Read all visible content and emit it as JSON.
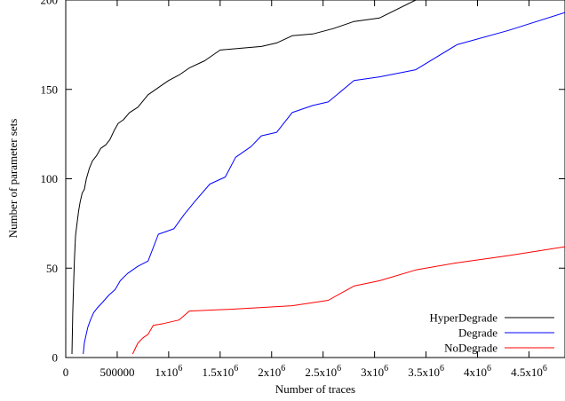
{
  "chart_data": {
    "type": "line",
    "title": "",
    "xlabel": "Number of traces",
    "ylabel": "Number of parameter sets",
    "xlim": [
      0,
      4850000
    ],
    "ylim": [
      0,
      200
    ],
    "grid": false,
    "legend_position": "bottom-right",
    "x_ticks": [
      {
        "value": 0,
        "text": "0"
      },
      {
        "value": 500000,
        "text": "500000"
      },
      {
        "value": 1000000,
        "base": "1x10",
        "exp": "6"
      },
      {
        "value": 1500000,
        "base": "1.5x10",
        "exp": "6"
      },
      {
        "value": 2000000,
        "base": "2x10",
        "exp": "6"
      },
      {
        "value": 2500000,
        "base": "2.5x10",
        "exp": "6"
      },
      {
        "value": 3000000,
        "base": "3x10",
        "exp": "6"
      },
      {
        "value": 3500000,
        "base": "3.5x10",
        "exp": "6"
      },
      {
        "value": 4000000,
        "base": "4x10",
        "exp": "6"
      },
      {
        "value": 4500000,
        "base": "4.5x10",
        "exp": "6"
      }
    ],
    "y_ticks": [
      {
        "value": 0,
        "text": "0"
      },
      {
        "value": 50,
        "text": "50"
      },
      {
        "value": 100,
        "text": "100"
      },
      {
        "value": 150,
        "text": "150"
      },
      {
        "value": 200,
        "text": "200"
      }
    ],
    "series": [
      {
        "name": "HyperDegrade",
        "color": "#000000",
        "points": [
          [
            60000,
            2
          ],
          [
            68000,
            25
          ],
          [
            76000,
            40
          ],
          [
            85000,
            55
          ],
          [
            95000,
            68
          ],
          [
            110000,
            75
          ],
          [
            125000,
            82
          ],
          [
            140000,
            87
          ],
          [
            160000,
            92
          ],
          [
            180000,
            94
          ],
          [
            200000,
            100
          ],
          [
            230000,
            106
          ],
          [
            260000,
            110
          ],
          [
            300000,
            113
          ],
          [
            340000,
            117
          ],
          [
            390000,
            119
          ],
          [
            430000,
            122
          ],
          [
            470000,
            127
          ],
          [
            510000,
            131
          ],
          [
            560000,
            133
          ],
          [
            620000,
            137
          ],
          [
            700000,
            140
          ],
          [
            800000,
            147
          ],
          [
            900000,
            151
          ],
          [
            1000000,
            155
          ],
          [
            1100000,
            158
          ],
          [
            1200000,
            162
          ],
          [
            1350000,
            166
          ],
          [
            1500000,
            172
          ],
          [
            1700000,
            173
          ],
          [
            1900000,
            174
          ],
          [
            2050000,
            176
          ],
          [
            2200000,
            180
          ],
          [
            2400000,
            181
          ],
          [
            2600000,
            184
          ],
          [
            2800000,
            188
          ],
          [
            3050000,
            190
          ],
          [
            3400000,
            200
          ],
          [
            3800000,
            204
          ],
          [
            4300000,
            207
          ],
          [
            4850000,
            208
          ]
        ]
      },
      {
        "name": "Degrade",
        "color": "#0000ff",
        "points": [
          [
            170000,
            2
          ],
          [
            180000,
            8
          ],
          [
            195000,
            12
          ],
          [
            215000,
            17
          ],
          [
            240000,
            21
          ],
          [
            270000,
            25
          ],
          [
            310000,
            28
          ],
          [
            360000,
            31
          ],
          [
            420000,
            35
          ],
          [
            480000,
            38
          ],
          [
            530000,
            43
          ],
          [
            600000,
            47
          ],
          [
            700000,
            51
          ],
          [
            800000,
            54
          ],
          [
            900000,
            69
          ],
          [
            950000,
            70
          ],
          [
            1050000,
            72
          ],
          [
            1150000,
            80
          ],
          [
            1250000,
            87
          ],
          [
            1400000,
            97
          ],
          [
            1550000,
            101
          ],
          [
            1650000,
            112
          ],
          [
            1800000,
            118
          ],
          [
            1900000,
            124
          ],
          [
            2050000,
            126
          ],
          [
            2200000,
            137
          ],
          [
            2400000,
            141
          ],
          [
            2550000,
            143
          ],
          [
            2800000,
            155
          ],
          [
            3050000,
            157
          ],
          [
            3400000,
            161
          ],
          [
            3800000,
            175
          ],
          [
            4300000,
            183
          ],
          [
            4850000,
            193
          ]
        ]
      },
      {
        "name": "NoDegrade",
        "color": "#ff0000",
        "points": [
          [
            650000,
            2
          ],
          [
            700000,
            8
          ],
          [
            750000,
            11
          ],
          [
            800000,
            13
          ],
          [
            850000,
            18
          ],
          [
            950000,
            19
          ],
          [
            1100000,
            21
          ],
          [
            1200000,
            26
          ],
          [
            1600000,
            27
          ],
          [
            1900000,
            28
          ],
          [
            2200000,
            29
          ],
          [
            2550000,
            32
          ],
          [
            2800000,
            40
          ],
          [
            3050000,
            43
          ],
          [
            3400000,
            49
          ],
          [
            3800000,
            53
          ],
          [
            4300000,
            57
          ],
          [
            4850000,
            62
          ]
        ]
      }
    ]
  }
}
